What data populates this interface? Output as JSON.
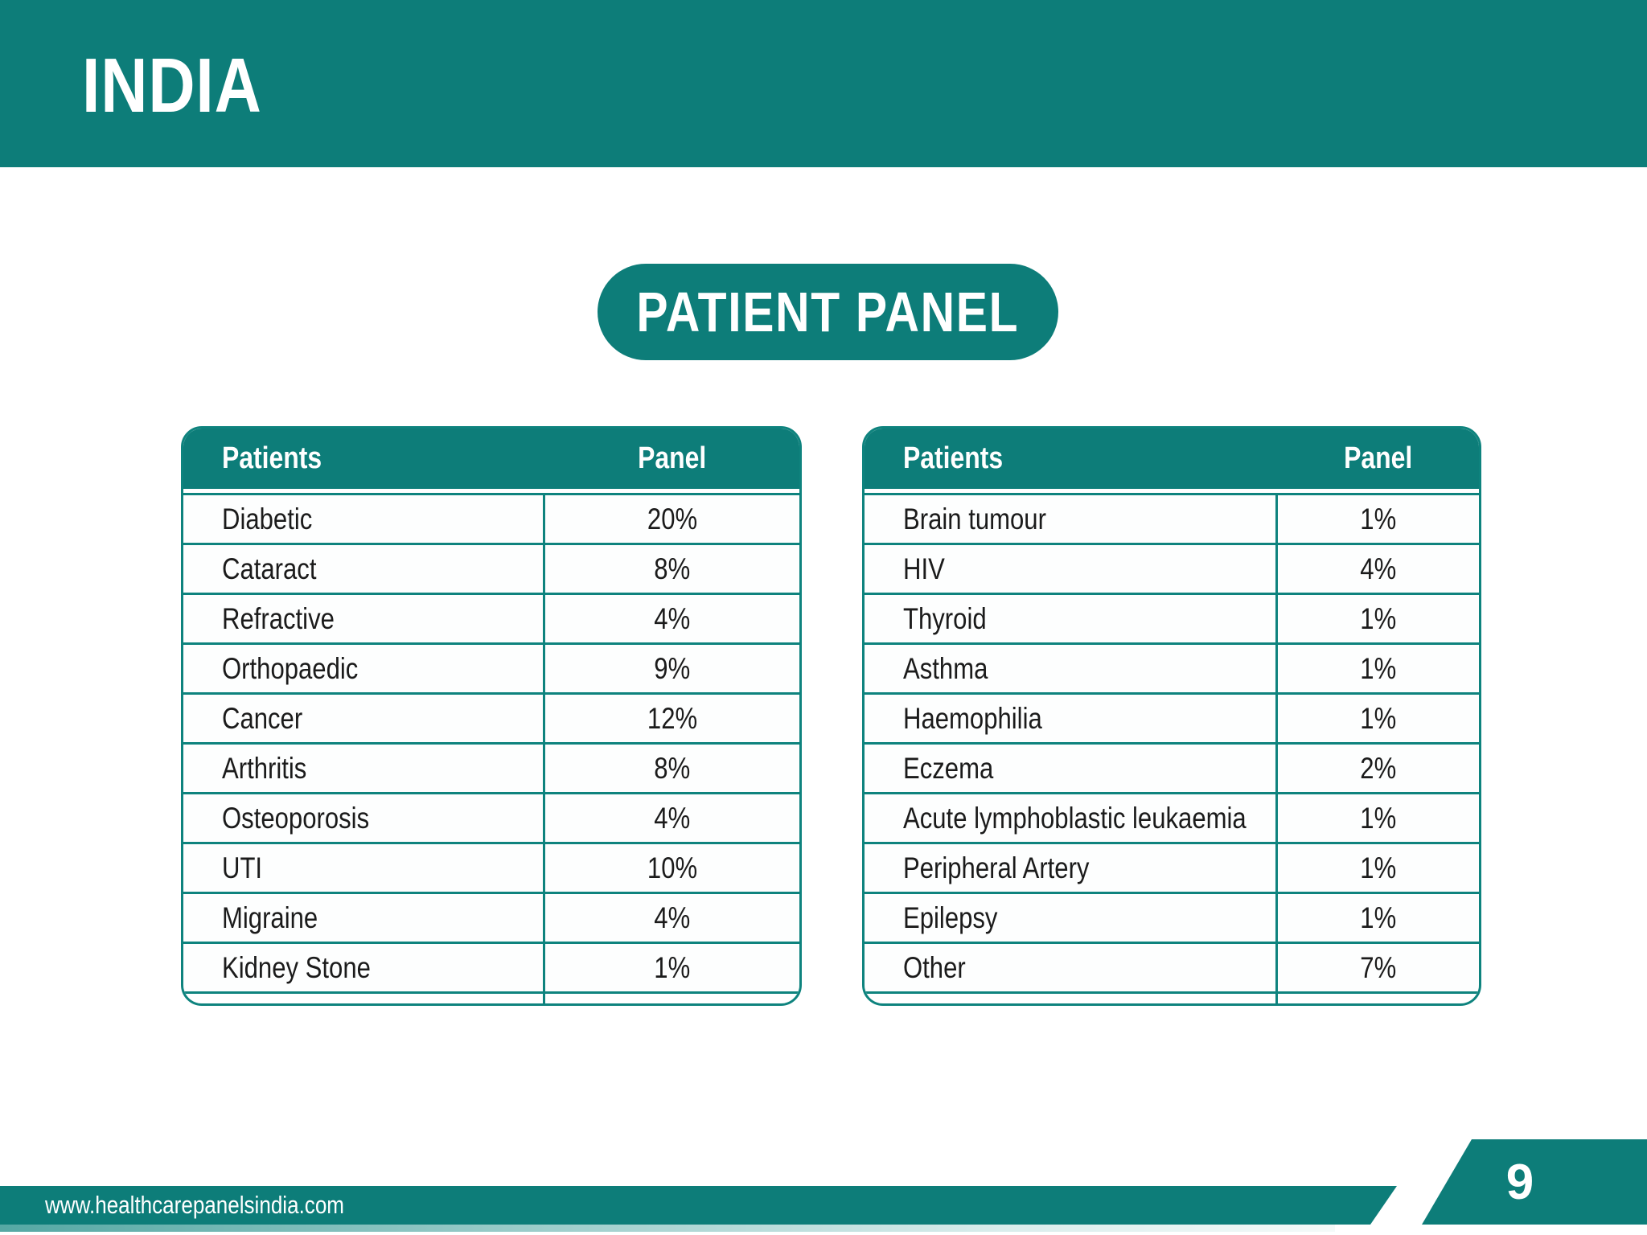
{
  "header": {
    "title": "INDIA"
  },
  "slide_title": "PATIENT PANEL",
  "tables": {
    "left": {
      "columns": {
        "patients": "Patients",
        "panel": "Panel"
      },
      "rows": [
        [
          "Diabetic",
          "20%"
        ],
        [
          "Cataract",
          "8%"
        ],
        [
          "Refractive",
          "4%"
        ],
        [
          "Orthopaedic",
          "9%"
        ],
        [
          "Cancer",
          "12%"
        ],
        [
          "Arthritis",
          "8%"
        ],
        [
          "Osteoporosis",
          "4%"
        ],
        [
          "UTI",
          "10%"
        ],
        [
          "Migraine",
          "4%"
        ],
        [
          "Kidney Stone",
          "1%"
        ]
      ]
    },
    "right": {
      "columns": {
        "patients": "Patients",
        "panel": "Panel"
      },
      "rows": [
        [
          "Brain tumour",
          "1%"
        ],
        [
          "HIV",
          "4%"
        ],
        [
          "Thyroid",
          "1%"
        ],
        [
          "Asthma",
          "1%"
        ],
        [
          "Haemophilia",
          "1%"
        ],
        [
          "Eczema",
          "2%"
        ],
        [
          "Acute lymphoblastic leukaemia",
          "1%"
        ],
        [
          "Peripheral Artery",
          "1%"
        ],
        [
          "Epilepsy",
          "1%"
        ],
        [
          "Other",
          "7%"
        ]
      ]
    }
  },
  "footer": {
    "website": "www.healthcarepanelsindia.com",
    "page_number": "9"
  },
  "colors": {
    "teal": "#0d7d79",
    "teal_border": "#0e837e",
    "teal_light": "#55a8a4",
    "text": "#1b1b1b",
    "white": "#ffffff"
  }
}
